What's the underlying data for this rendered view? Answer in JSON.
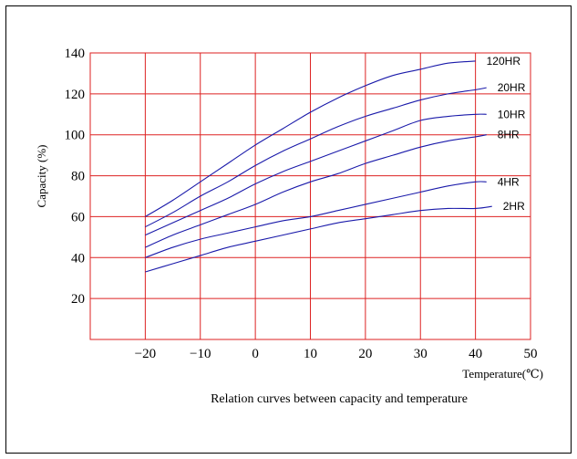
{
  "chart_data": {
    "type": "line",
    "title": "Relation curves between capacity and temperature",
    "xlabel": "Temperature(℃)",
    "ylabel": "Capacity (%)",
    "xlim": [
      -30,
      50
    ],
    "ylim": [
      0,
      140
    ],
    "x_ticks": [
      "−20",
      "−10",
      "0",
      "10",
      "20",
      "30",
      "40",
      "50"
    ],
    "y_ticks": [
      "20",
      "40",
      "60",
      "80",
      "100",
      "120",
      "140"
    ],
    "grid": true,
    "colors": {
      "grid": "#dd2222",
      "series": "#1a1aaa"
    },
    "series": [
      {
        "name": "120HR",
        "x": [
          -20,
          -15,
          -10,
          -5,
          0,
          5,
          10,
          15,
          20,
          25,
          30,
          35,
          40
        ],
        "values": [
          60,
          68,
          77,
          86,
          95,
          103,
          111,
          118,
          124,
          129,
          132,
          135,
          136
        ]
      },
      {
        "name": "20HR",
        "x": [
          -20,
          -15,
          -10,
          -5,
          0,
          5,
          10,
          15,
          20,
          25,
          30,
          35,
          40,
          42
        ],
        "values": [
          55,
          62,
          70,
          77,
          85,
          92,
          98,
          104,
          109,
          113,
          117,
          120,
          122,
          123
        ]
      },
      {
        "name": "10HR",
        "x": [
          -20,
          -15,
          -10,
          -5,
          0,
          5,
          10,
          15,
          20,
          25,
          30,
          35,
          40,
          42
        ],
        "values": [
          51,
          57,
          63,
          69,
          76,
          82,
          87,
          92,
          97,
          102,
          107,
          109,
          110,
          110
        ]
      },
      {
        "name": "8HR",
        "x": [
          -20,
          -15,
          -10,
          -5,
          0,
          5,
          10,
          15,
          20,
          25,
          30,
          35,
          40,
          42
        ],
        "values": [
          45,
          51,
          56,
          61,
          66,
          72,
          77,
          81,
          86,
          90,
          94,
          97,
          99,
          100
        ]
      },
      {
        "name": "4HR",
        "x": [
          -20,
          -15,
          -10,
          -5,
          0,
          5,
          10,
          15,
          20,
          25,
          30,
          35,
          40,
          42
        ],
        "values": [
          40,
          45,
          49,
          52,
          55,
          58,
          60,
          63,
          66,
          69,
          72,
          75,
          77,
          77
        ]
      },
      {
        "name": "2HR",
        "x": [
          -20,
          -15,
          -10,
          -5,
          0,
          5,
          10,
          15,
          20,
          25,
          30,
          35,
          40,
          43
        ],
        "values": [
          33,
          37,
          41,
          45,
          48,
          51,
          54,
          57,
          59,
          61,
          63,
          64,
          64,
          65
        ]
      }
    ]
  }
}
